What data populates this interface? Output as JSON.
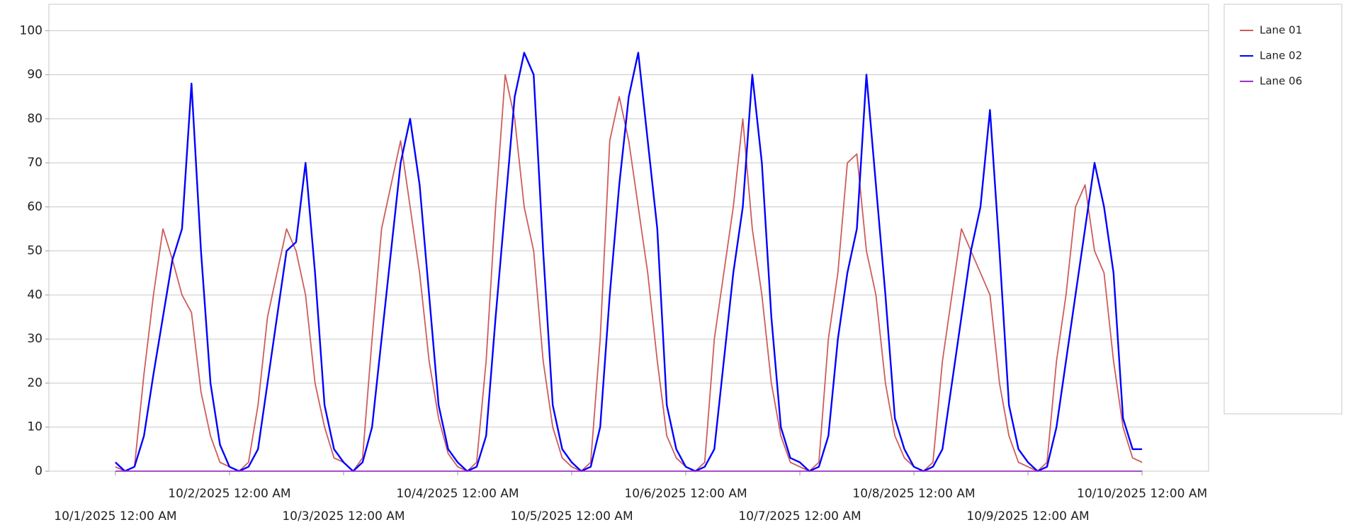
{
  "chart_data": {
    "type": "line",
    "x": [
      "2025-10-01T00:00",
      "2025-10-01T02:00",
      "2025-10-01T04:00",
      "2025-10-01T06:00",
      "2025-10-01T08:00",
      "2025-10-01T10:00",
      "2025-10-01T12:00",
      "2025-10-01T14:00",
      "2025-10-01T16:00",
      "2025-10-01T18:00",
      "2025-10-01T20:00",
      "2025-10-01T22:00",
      "2025-10-02T00:00",
      "2025-10-02T02:00",
      "2025-10-02T04:00",
      "2025-10-02T06:00",
      "2025-10-02T08:00",
      "2025-10-02T10:00",
      "2025-10-02T12:00",
      "2025-10-02T14:00",
      "2025-10-02T16:00",
      "2025-10-02T18:00",
      "2025-10-02T20:00",
      "2025-10-02T22:00",
      "2025-10-03T00:00",
      "2025-10-03T02:00",
      "2025-10-03T04:00",
      "2025-10-03T06:00",
      "2025-10-03T08:00",
      "2025-10-03T10:00",
      "2025-10-03T12:00",
      "2025-10-03T14:00",
      "2025-10-03T16:00",
      "2025-10-03T18:00",
      "2025-10-03T20:00",
      "2025-10-03T22:00",
      "2025-10-04T00:00",
      "2025-10-04T02:00",
      "2025-10-04T04:00",
      "2025-10-04T06:00",
      "2025-10-04T08:00",
      "2025-10-04T10:00",
      "2025-10-04T12:00",
      "2025-10-04T14:00",
      "2025-10-04T16:00",
      "2025-10-04T18:00",
      "2025-10-04T20:00",
      "2025-10-04T22:00",
      "2025-10-05T00:00",
      "2025-10-05T02:00",
      "2025-10-05T04:00",
      "2025-10-05T06:00",
      "2025-10-05T08:00",
      "2025-10-05T10:00",
      "2025-10-05T12:00",
      "2025-10-05T14:00",
      "2025-10-05T16:00",
      "2025-10-05T18:00",
      "2025-10-05T20:00",
      "2025-10-05T22:00",
      "2025-10-06T00:00",
      "2025-10-06T02:00",
      "2025-10-06T04:00",
      "2025-10-06T06:00",
      "2025-10-06T08:00",
      "2025-10-06T10:00",
      "2025-10-06T12:00",
      "2025-10-06T14:00",
      "2025-10-06T16:00",
      "2025-10-06T18:00",
      "2025-10-06T20:00",
      "2025-10-06T22:00",
      "2025-10-07T00:00",
      "2025-10-07T02:00",
      "2025-10-07T04:00",
      "2025-10-07T06:00",
      "2025-10-07T08:00",
      "2025-10-07T10:00",
      "2025-10-07T12:00",
      "2025-10-07T14:00",
      "2025-10-07T16:00",
      "2025-10-07T18:00",
      "2025-10-07T20:00",
      "2025-10-07T22:00",
      "2025-10-08T00:00",
      "2025-10-08T02:00",
      "2025-10-08T04:00",
      "2025-10-08T06:00",
      "2025-10-08T08:00",
      "2025-10-08T10:00",
      "2025-10-08T12:00",
      "2025-10-08T14:00",
      "2025-10-08T16:00",
      "2025-10-08T18:00",
      "2025-10-08T20:00",
      "2025-10-08T22:00",
      "2025-10-09T00:00",
      "2025-10-09T02:00",
      "2025-10-09T04:00",
      "2025-10-09T06:00",
      "2025-10-09T08:00",
      "2025-10-09T10:00",
      "2025-10-09T12:00",
      "2025-10-09T14:00",
      "2025-10-09T16:00",
      "2025-10-09T18:00",
      "2025-10-09T20:00",
      "2025-10-09T22:00",
      "2025-10-10T00:00"
    ],
    "series": [
      {
        "name": "Lane 01",
        "color": "#cd5c5c",
        "values": [
          1,
          0,
          1,
          22,
          40,
          55,
          48,
          40,
          36,
          18,
          8,
          2,
          1,
          0,
          2,
          15,
          35,
          45,
          55,
          50,
          40,
          20,
          10,
          3,
          2,
          0,
          3,
          30,
          55,
          65,
          75,
          60,
          45,
          25,
          12,
          4,
          1,
          0,
          2,
          25,
          60,
          90,
          80,
          60,
          50,
          25,
          10,
          3,
          1,
          0,
          2,
          30,
          75,
          85,
          75,
          60,
          45,
          25,
          8,
          3,
          1,
          0,
          2,
          30,
          45,
          60,
          80,
          55,
          40,
          20,
          8,
          2,
          1,
          0,
          2,
          30,
          45,
          70,
          72,
          50,
          40,
          20,
          8,
          3,
          1,
          0,
          2,
          25,
          40,
          55,
          50,
          45,
          40,
          20,
          8,
          2,
          1,
          0,
          2,
          25,
          40,
          60,
          65,
          50,
          45,
          25,
          10,
          3,
          2
        ]
      },
      {
        "name": "Lane 02",
        "color": "#0000ff",
        "values": [
          2,
          0,
          1,
          8,
          22,
          35,
          48,
          55,
          88,
          50,
          20,
          6,
          1,
          0,
          1,
          5,
          20,
          35,
          50,
          52,
          70,
          45,
          15,
          5,
          2,
          0,
          2,
          10,
          30,
          50,
          70,
          80,
          65,
          40,
          15,
          5,
          2,
          0,
          1,
          8,
          35,
          60,
          85,
          95,
          90,
          50,
          15,
          5,
          2,
          0,
          1,
          10,
          40,
          65,
          85,
          95,
          75,
          55,
          15,
          5,
          1,
          0,
          1,
          5,
          25,
          45,
          60,
          90,
          70,
          35,
          10,
          3,
          2,
          0,
          1,
          8,
          30,
          45,
          55,
          90,
          65,
          40,
          12,
          5,
          1,
          0,
          1,
          5,
          20,
          35,
          50,
          60,
          82,
          50,
          15,
          5,
          2,
          0,
          1,
          10,
          25,
          40,
          55,
          70,
          60,
          45,
          12,
          5,
          5
        ]
      },
      {
        "name": "Lane 06",
        "color": "#9932cc",
        "values": [
          0,
          0,
          0,
          0,
          0,
          0,
          0,
          0,
          0,
          0,
          0,
          0,
          0,
          0,
          0,
          0,
          0,
          0,
          0,
          0,
          0,
          0,
          0,
          0,
          0,
          0,
          0,
          0,
          0,
          0,
          0,
          0,
          0,
          0,
          0,
          0,
          0,
          0,
          0,
          0,
          0,
          0,
          0,
          0,
          0,
          0,
          0,
          0,
          0,
          0,
          0,
          0,
          0,
          0,
          0,
          0,
          0,
          0,
          0,
          0,
          0,
          0,
          0,
          0,
          0,
          0,
          0,
          0,
          0,
          0,
          0,
          0,
          0,
          0,
          0,
          0,
          0,
          0,
          0,
          0,
          0,
          0,
          0,
          0,
          0,
          0,
          0,
          0,
          0,
          0,
          0,
          0,
          0,
          0,
          0,
          0,
          0,
          0,
          0,
          0,
          0,
          0,
          0,
          0,
          0,
          0,
          0,
          0,
          0
        ]
      }
    ],
    "xlim": [
      "2025-09-30T10:00",
      "2025-10-10T14:00"
    ],
    "xticks": [
      {
        "value": "2025-10-01T00:00",
        "label": "10/1/2025 12:00 AM"
      },
      {
        "value": "2025-10-02T00:00",
        "label": "10/2/2025 12:00 AM"
      },
      {
        "value": "2025-10-03T00:00",
        "label": "10/3/2025 12:00 AM"
      },
      {
        "value": "2025-10-04T00:00",
        "label": "10/4/2025 12:00 AM"
      },
      {
        "value": "2025-10-05T00:00",
        "label": "10/5/2025 12:00 AM"
      },
      {
        "value": "2025-10-06T00:00",
        "label": "10/6/2025 12:00 AM"
      },
      {
        "value": "2025-10-07T00:00",
        "label": "10/7/2025 12:00 AM"
      },
      {
        "value": "2025-10-08T00:00",
        "label": "10/8/2025 12:00 AM"
      },
      {
        "value": "2025-10-09T00:00",
        "label": "10/9/2025 12:00 AM"
      },
      {
        "value": "2025-10-10T00:00",
        "label": "10/10/2025 12:00 AM"
      }
    ],
    "ylim": [
      0,
      106
    ],
    "yticks": [
      0,
      10,
      20,
      30,
      40,
      50,
      60,
      70,
      80,
      90,
      100
    ],
    "grid": true,
    "legend": "right"
  }
}
